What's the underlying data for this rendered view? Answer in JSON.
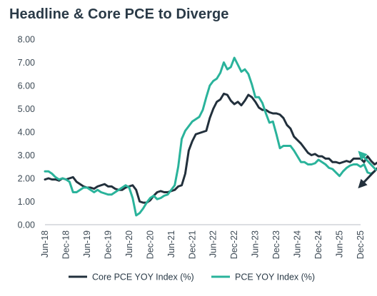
{
  "chart_data": {
    "type": "line",
    "title": "Headline & Core PCE to Diverge",
    "xlabel": "",
    "ylabel": "",
    "ylim": [
      0,
      8
    ],
    "yticks": [
      "0.00",
      "1.00",
      "2.00",
      "3.00",
      "4.00",
      "5.00",
      "6.00",
      "7.00",
      "8.00"
    ],
    "xticks": [
      "Jun-18",
      "Dec-18",
      "Jun-19",
      "Dec-19",
      "Jun-20",
      "Dec-20",
      "Jun-21",
      "Dec-21",
      "Jun-22",
      "Dec-22",
      "Jun-23",
      "Dec-23",
      "Jun-24",
      "Dec-24",
      "Jun-25",
      "Dec-25"
    ],
    "x_start": "Jun-18",
    "grid": false,
    "legend_position": "bottom",
    "series": [
      {
        "name": "Core PCE YOY Index  (%)",
        "color": "#22303c",
        "values": [
          1.95,
          2.0,
          1.95,
          1.95,
          1.9,
          2.0,
          1.95,
          2.0,
          2.05,
          1.85,
          1.75,
          1.65,
          1.6,
          1.6,
          1.55,
          1.65,
          1.7,
          1.75,
          1.65,
          1.65,
          1.55,
          1.5,
          1.5,
          1.6,
          1.65,
          1.7,
          1.5,
          1.0,
          0.95,
          0.95,
          1.05,
          1.25,
          1.4,
          1.45,
          1.4,
          1.4,
          1.45,
          1.5,
          1.65,
          1.7,
          2.2,
          3.2,
          3.6,
          3.9,
          3.95,
          4.0,
          4.05,
          4.6,
          5.0,
          5.3,
          5.4,
          5.65,
          5.6,
          5.35,
          5.2,
          5.3,
          5.15,
          5.35,
          5.6,
          5.5,
          5.3,
          5.05,
          4.95,
          4.95,
          4.85,
          4.8,
          4.8,
          4.75,
          4.6,
          4.3,
          4.15,
          3.8,
          3.65,
          3.5,
          3.3,
          3.1,
          3.0,
          3.05,
          2.95,
          2.95,
          2.85,
          2.85,
          2.7,
          2.7,
          2.65,
          2.7,
          2.75,
          2.7,
          2.85,
          2.85,
          2.85,
          2.7,
          2.95,
          2.75,
          2.6,
          2.7
        ],
        "forecast": {
          "from": 2.55,
          "to": 1.65
        }
      },
      {
        "name": "PCE YOY Index (%)",
        "color": "#2ab39b",
        "values": [
          2.3,
          2.3,
          2.2,
          2.05,
          1.95,
          2.0,
          1.95,
          1.85,
          1.4,
          1.4,
          1.5,
          1.6,
          1.6,
          1.5,
          1.4,
          1.5,
          1.4,
          1.35,
          1.3,
          1.3,
          1.4,
          1.5,
          1.6,
          1.7,
          1.6,
          1.15,
          0.4,
          0.5,
          0.7,
          0.95,
          1.15,
          1.25,
          1.1,
          1.15,
          1.25,
          1.3,
          1.5,
          1.7,
          2.5,
          3.7,
          4.05,
          4.25,
          4.45,
          4.55,
          4.65,
          4.95,
          5.5,
          6.0,
          6.2,
          6.3,
          6.55,
          7.0,
          6.7,
          6.8,
          7.2,
          6.9,
          6.6,
          6.7,
          6.5,
          6.05,
          5.5,
          5.5,
          5.25,
          4.8,
          4.4,
          4.45,
          3.9,
          3.3,
          3.4,
          3.4,
          3.4,
          3.2,
          2.95,
          2.7,
          2.7,
          2.6,
          2.6,
          2.65,
          2.8,
          2.7,
          2.6,
          2.45,
          2.4,
          2.25,
          2.1,
          2.3,
          2.45,
          2.55,
          2.6,
          2.6,
          2.5,
          2.6,
          2.25,
          2.2,
          2.3
        ],
        "forecast": {
          "from": 2.35,
          "to": 3.1
        }
      }
    ]
  }
}
